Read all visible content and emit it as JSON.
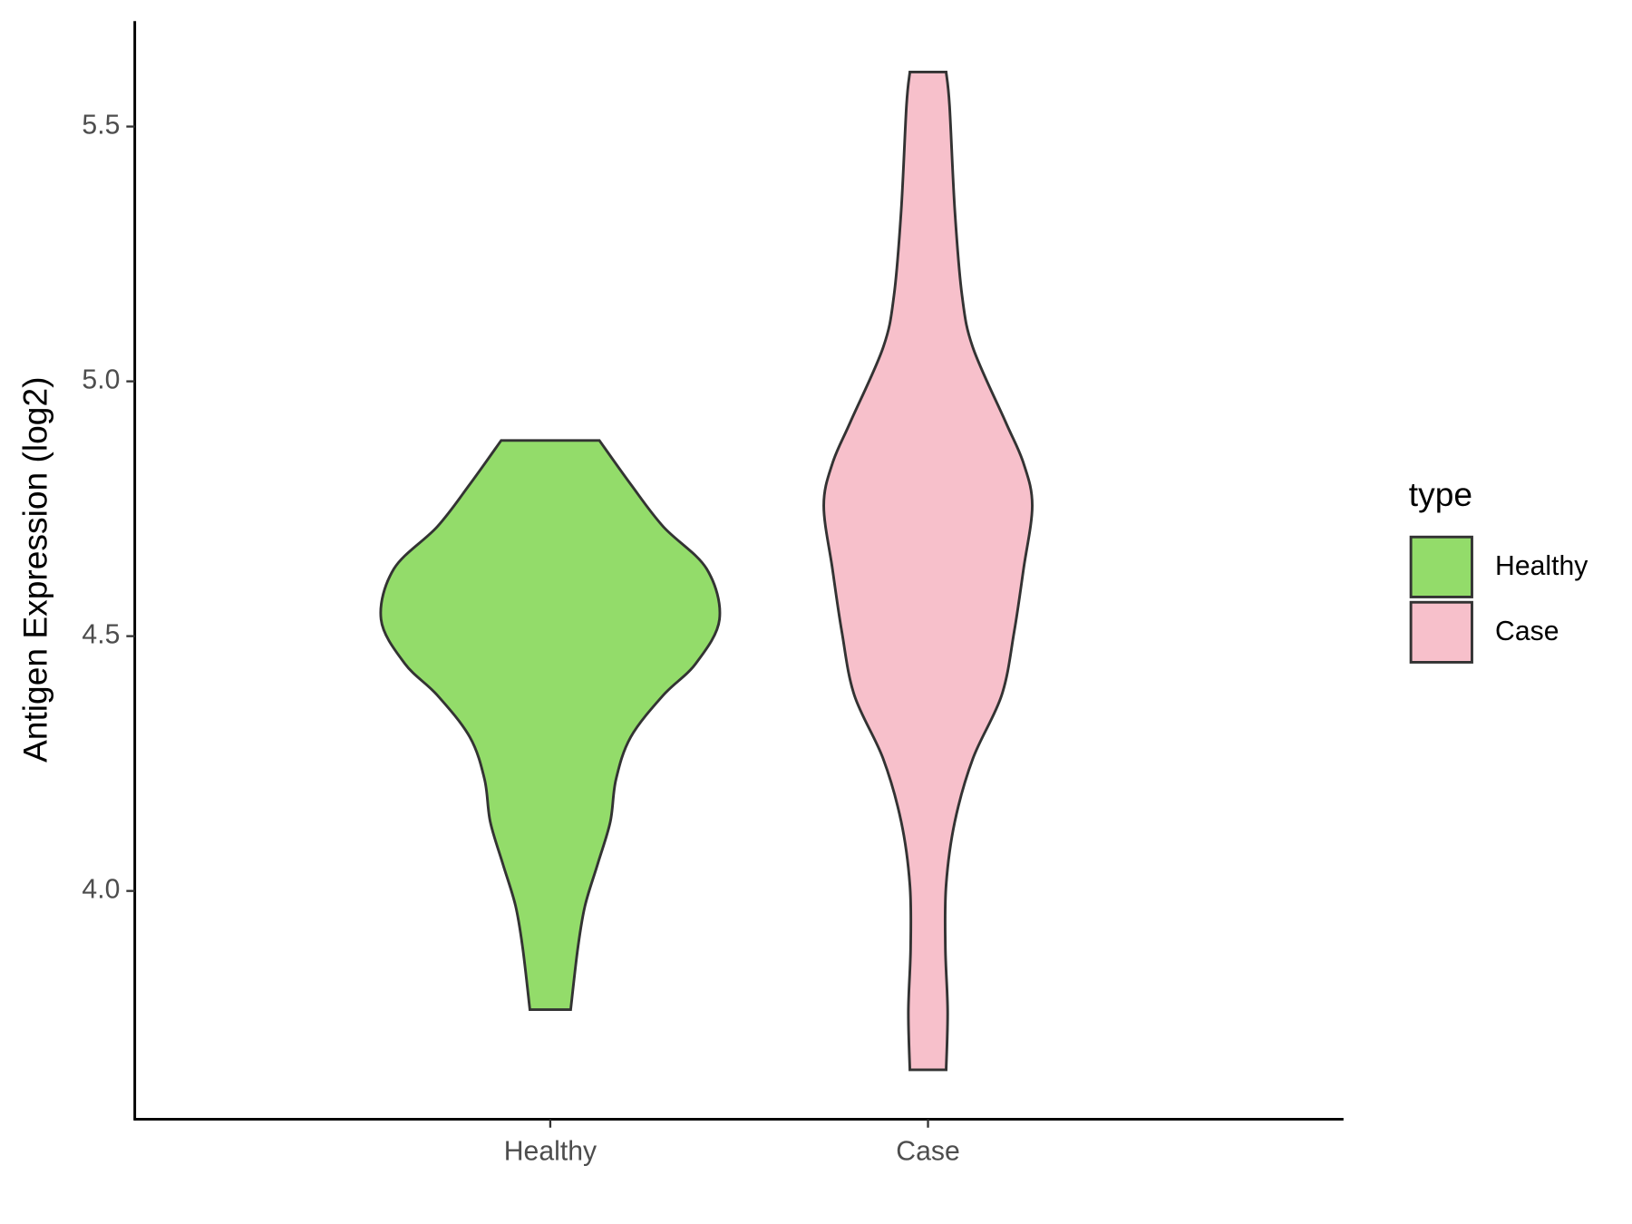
{
  "chart_data": {
    "type": "violin",
    "y_label": "Antigen Expression (log2)",
    "categories": [
      "Healthy",
      "Case"
    ],
    "ylim": [
      3.552,
      5.707
    ],
    "yticks": [
      {
        "value": 4,
        "label": "4.0"
      },
      4.5,
      {
        "value": 5,
        "label": "5.0"
      },
      5.5
    ],
    "legend_title": "type",
    "series": [
      {
        "name": "Healthy",
        "color": "#93dc6a",
        "y": [
          4.884,
          4.798,
          4.715,
          4.632,
          4.533,
          4.446,
          4.384,
          4.302,
          4.219,
          4.136,
          4.054,
          3.971,
          3.888,
          3.767
        ],
        "density": [
          0.13,
          0.213,
          0.299,
          0.414,
          0.448,
          0.385,
          0.299,
          0.213,
          0.174,
          0.159,
          0.126,
          0.092,
          0.073,
          0.054
        ]
      },
      {
        "name": "Case",
        "color": "#f7c0cb",
        "y": [
          5.607,
          5.541,
          5.335,
          5.169,
          5.066,
          4.921,
          4.839,
          4.756,
          4.632,
          4.508,
          4.384,
          4.26,
          4.136,
          4.012,
          3.888,
          3.764,
          3.649
        ],
        "density": [
          0.048,
          0.057,
          0.071,
          0.09,
          0.119,
          0.205,
          0.253,
          0.276,
          0.253,
          0.228,
          0.195,
          0.119,
          0.071,
          0.048,
          0.046,
          0.052,
          0.048
        ]
      }
    ]
  }
}
